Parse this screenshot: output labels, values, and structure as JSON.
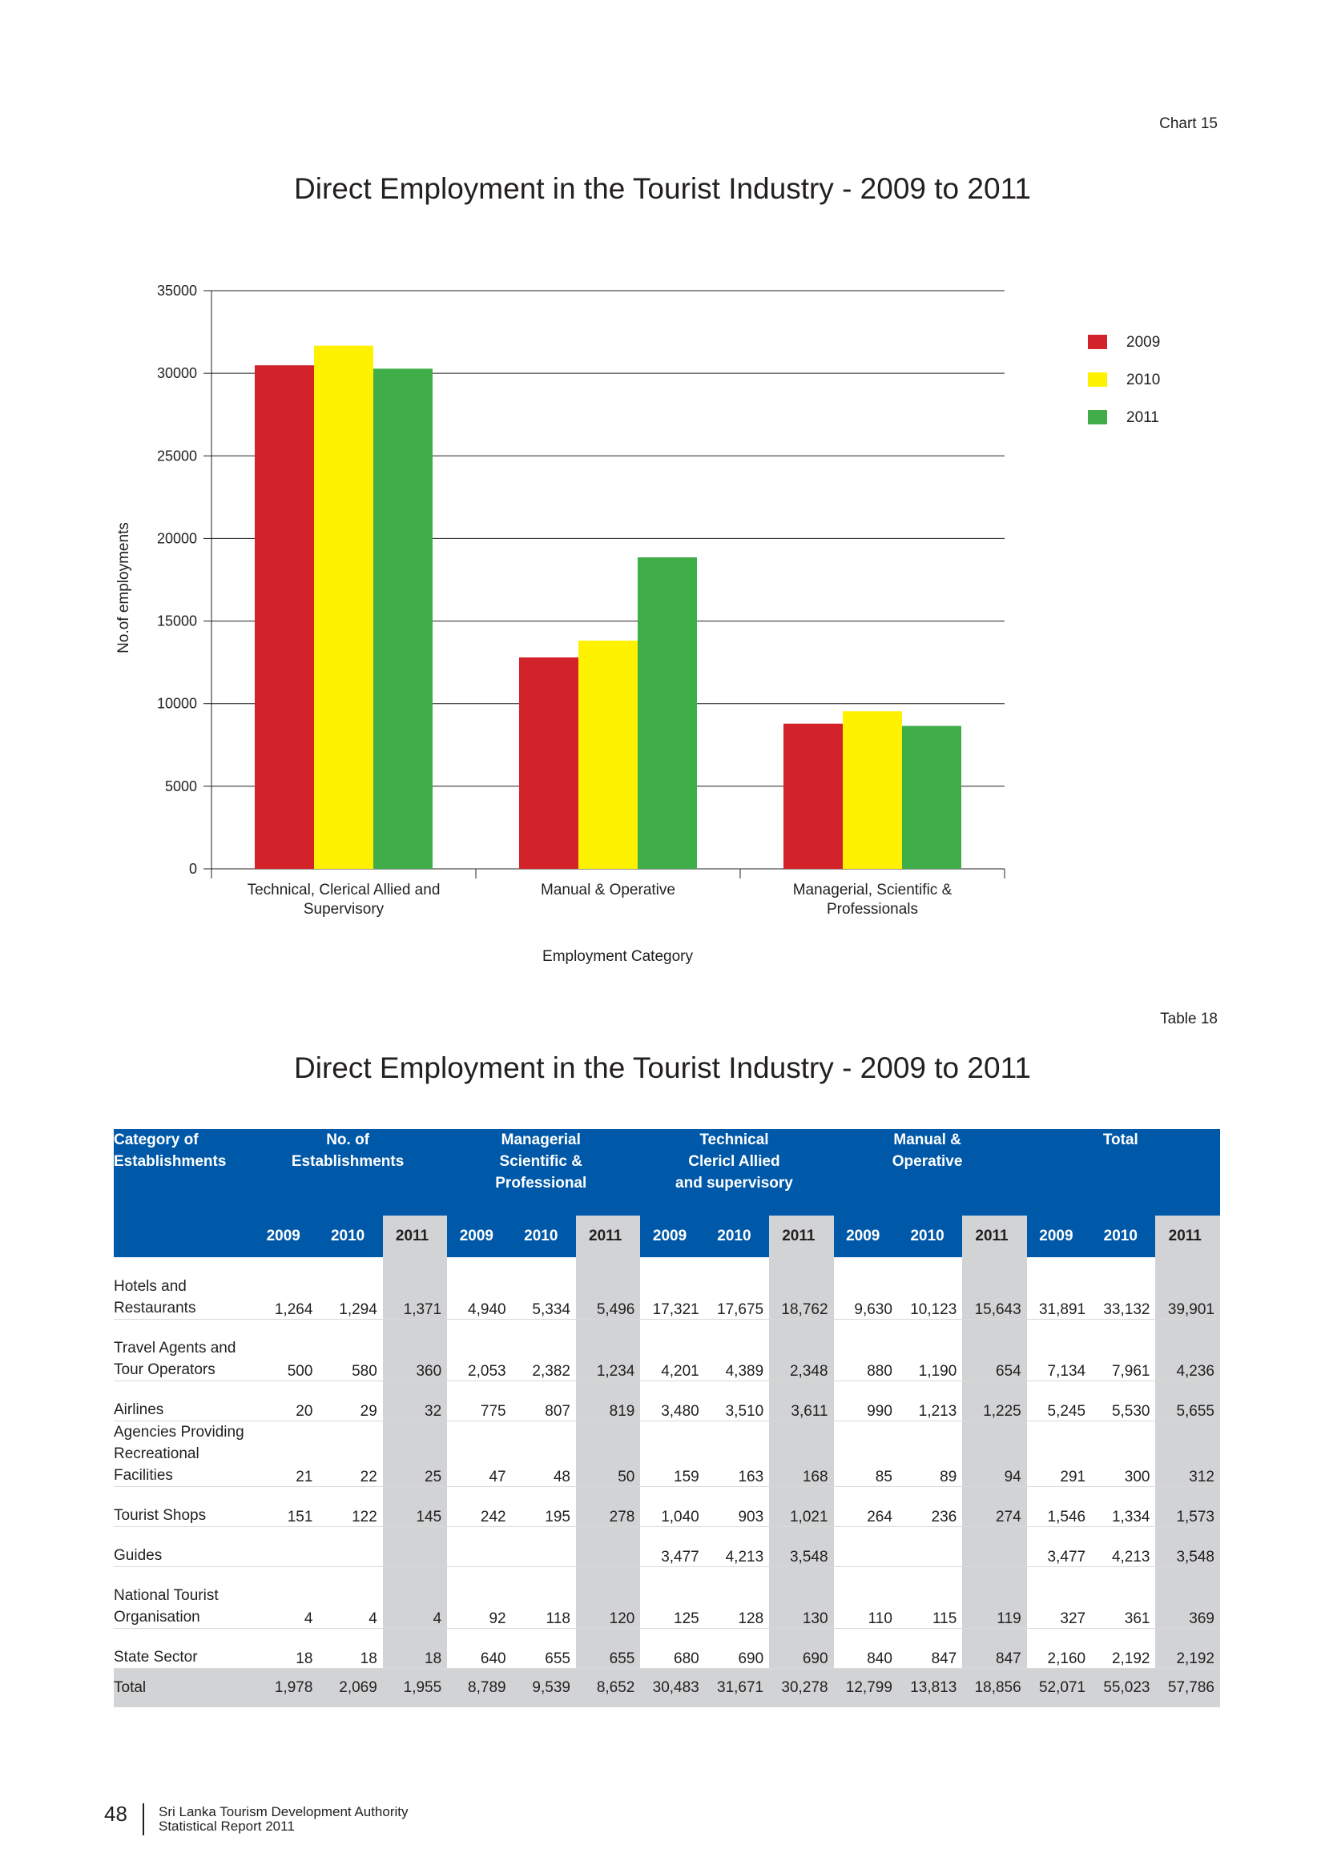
{
  "chart_label": "Chart 15",
  "chart_title": "Direct Employment in the Tourist Industry - 2009 to 2011",
  "chart_data": {
    "type": "bar",
    "categories": [
      [
        "Technical, Clerical Allied and",
        "Supervisory"
      ],
      [
        "Manual & Operative"
      ],
      [
        "Managerial, Scientific &",
        "Professionals"
      ]
    ],
    "series": [
      {
        "name": "2009",
        "color": "#d2232a",
        "values": [
          30483,
          12799,
          8789
        ]
      },
      {
        "name": "2010",
        "color": "#fff200",
        "values": [
          31671,
          13813,
          9539
        ]
      },
      {
        "name": "2011",
        "color": "#3fae49",
        "values": [
          30278,
          18856,
          8652
        ]
      }
    ],
    "ylabel": "No.of employments",
    "xlabel": "Employment Category",
    "ylim": [
      0,
      35000
    ],
    "yticks": [
      0,
      5000,
      10000,
      15000,
      20000,
      25000,
      30000,
      35000
    ],
    "grid": true,
    "legend": "right"
  },
  "table_label": "Table 18",
  "table_title": "Direct Employment in the Tourist Industry - 2009 to 2011",
  "table": {
    "headers": {
      "category": [
        "Category of",
        "Establishments"
      ],
      "groups": [
        [
          "No. of",
          "Establishments"
        ],
        [
          "Managerial",
          "Scientific &",
          "Professional"
        ],
        [
          "Technical",
          "Clericl Allied",
          "and supervisory"
        ],
        [
          "Manual &",
          "Operative"
        ],
        [
          "Total"
        ]
      ],
      "years": [
        "2009",
        "2010",
        "2011"
      ]
    },
    "rows": [
      {
        "category": [
          "Hotels and",
          "Restaurants"
        ],
        "values": [
          "1,264",
          "1,294",
          "1,371",
          "4,940",
          "5,334",
          "5,496",
          "17,321",
          "17,675",
          "18,762",
          "9,630",
          "10,123",
          "15,643",
          "31,891",
          "33,132",
          "39,901"
        ]
      },
      {
        "category": [
          "Travel Agents and",
          "Tour Operators"
        ],
        "values": [
          "500",
          "580",
          "360",
          "2,053",
          "2,382",
          "1,234",
          "4,201",
          "4,389",
          "2,348",
          "880",
          "1,190",
          "654",
          "7,134",
          "7,961",
          "4,236"
        ]
      },
      {
        "category": [
          "Airlines"
        ],
        "values": [
          "20",
          "29",
          "32",
          "775",
          "807",
          "819",
          "3,480",
          "3,510",
          "3,611",
          "990",
          "1,213",
          "1,225",
          "5,245",
          "5,530",
          "5,655"
        ]
      },
      {
        "category": [
          "Agencies Providing",
          "Recreational Facilities"
        ],
        "values": [
          "21",
          "22",
          "25",
          "47",
          "48",
          "50",
          "159",
          "163",
          "168",
          "85",
          "89",
          "94",
          "291",
          "300",
          "312"
        ]
      },
      {
        "category": [
          "Tourist Shops"
        ],
        "values": [
          "151",
          "122",
          "145",
          "242",
          "195",
          "278",
          "1,040",
          "903",
          "1,021",
          "264",
          "236",
          "274",
          "1,546",
          "1,334",
          "1,573"
        ]
      },
      {
        "category": [
          "Guides"
        ],
        "values": [
          "",
          "",
          "",
          "",
          "",
          "",
          "3,477",
          "4,213",
          "3,548",
          "",
          "",
          "",
          "3,477",
          "4,213",
          "3,548"
        ]
      },
      {
        "category": [
          "National Tourist",
          "Organisation"
        ],
        "values": [
          "4",
          "4",
          "4",
          "92",
          "118",
          "120",
          "125",
          "128",
          "130",
          "110",
          "115",
          "119",
          "327",
          "361",
          "369"
        ]
      },
      {
        "category": [
          "State Sector"
        ],
        "values": [
          "18",
          "18",
          "18",
          "640",
          "655",
          "655",
          "680",
          "690",
          "690",
          "840",
          "847",
          "847",
          "2,160",
          "2,192",
          "2,192"
        ]
      }
    ],
    "total": {
      "category": "Total",
      "values": [
        "1,978",
        "2,069",
        "1,955",
        "8,789",
        "9,539",
        "8,652",
        "30,483",
        "31,671",
        "30,278",
        "12,799",
        "13,813",
        "18,856",
        "52,071",
        "55,023",
        "57,786"
      ]
    }
  },
  "footer": {
    "page_number": "48",
    "line1": "Sri Lanka Tourism Development Authority",
    "line2": "Statistical Report 2011"
  }
}
